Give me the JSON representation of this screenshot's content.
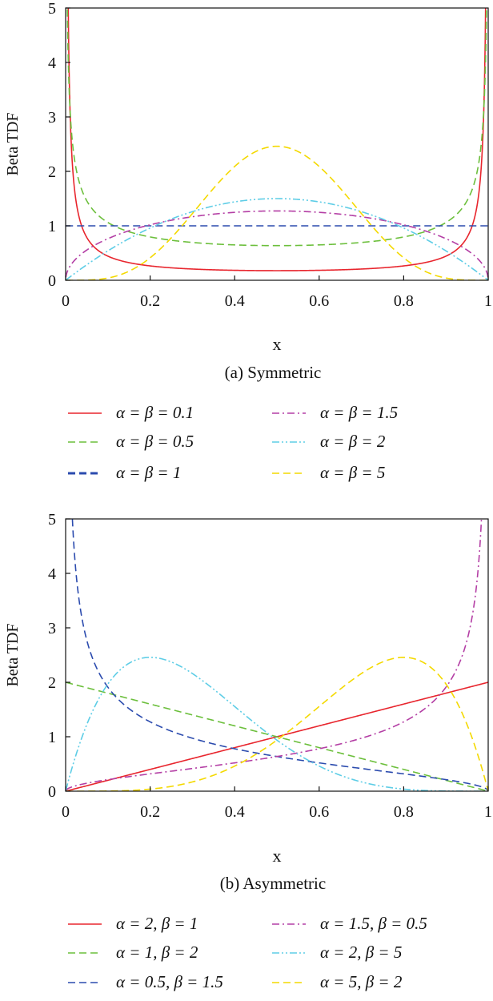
{
  "colors": {
    "red": "#e8262e",
    "green": "#6cbf3c",
    "blue": "#2b4bae",
    "magenta": "#b43fa5",
    "cyan": "#5ecde6",
    "yellow": "#f4d900"
  },
  "chart_data": [
    {
      "type": "line",
      "caption": "(a) Symmetric",
      "xlabel": "x",
      "ylabel": "Beta TDF",
      "xlim": [
        0,
        1
      ],
      "ylim": [
        0,
        5
      ],
      "xticks": [
        "0",
        "0.2",
        "0.4",
        "0.6",
        "0.8",
        "1"
      ],
      "yticks": [
        "0",
        "1",
        "2",
        "3",
        "4",
        "5"
      ],
      "grid": false,
      "legend_position": "below",
      "series": [
        {
          "name": "α = β = 0.1",
          "alpha": 0.1,
          "beta": 0.1,
          "color": "#e8262e",
          "dash": "solid"
        },
        {
          "name": "α = β = 0.5",
          "alpha": 0.5,
          "beta": 0.5,
          "color": "#6cbf3c",
          "dash": "dashed"
        },
        {
          "name": "α = β = 1",
          "alpha": 1,
          "beta": 1,
          "color": "#2b4bae",
          "dash": "dashed"
        },
        {
          "name": "α = β = 1.5",
          "alpha": 1.5,
          "beta": 1.5,
          "color": "#b43fa5",
          "dash": "dashdot"
        },
        {
          "name": "α = β = 2",
          "alpha": 2,
          "beta": 2,
          "color": "#5ecde6",
          "dash": "dashdotdot"
        },
        {
          "name": "α = β = 5",
          "alpha": 5,
          "beta": 5,
          "color": "#f4d900",
          "dash": "dashed"
        }
      ]
    },
    {
      "type": "line",
      "caption": "(b) Asymmetric",
      "xlabel": "x",
      "ylabel": "Beta TDF",
      "xlim": [
        0,
        1
      ],
      "ylim": [
        0,
        5
      ],
      "xticks": [
        "0",
        "0.2",
        "0.4",
        "0.6",
        "0.8",
        "1"
      ],
      "yticks": [
        "0",
        "1",
        "2",
        "3",
        "4",
        "5"
      ],
      "grid": false,
      "legend_position": "below",
      "series": [
        {
          "name": "α = 2, β = 1",
          "alpha": 2,
          "beta": 1,
          "color": "#e8262e",
          "dash": "solid"
        },
        {
          "name": "α = 1, β = 2",
          "alpha": 1,
          "beta": 2,
          "color": "#6cbf3c",
          "dash": "dashed"
        },
        {
          "name": "α = 0.5, β = 1.5",
          "alpha": 0.5,
          "beta": 1.5,
          "color": "#2b4bae",
          "dash": "dashed"
        },
        {
          "name": "α = 1.5, β = 0.5",
          "alpha": 1.5,
          "beta": 0.5,
          "color": "#b43fa5",
          "dash": "dashdot"
        },
        {
          "name": "α = 2, β = 5",
          "alpha": 2,
          "beta": 5,
          "color": "#5ecde6",
          "dash": "dashdotdot"
        },
        {
          "name": "α = 5, β = 2",
          "alpha": 5,
          "beta": 2,
          "color": "#f4d900",
          "dash": "dashed"
        }
      ]
    }
  ]
}
